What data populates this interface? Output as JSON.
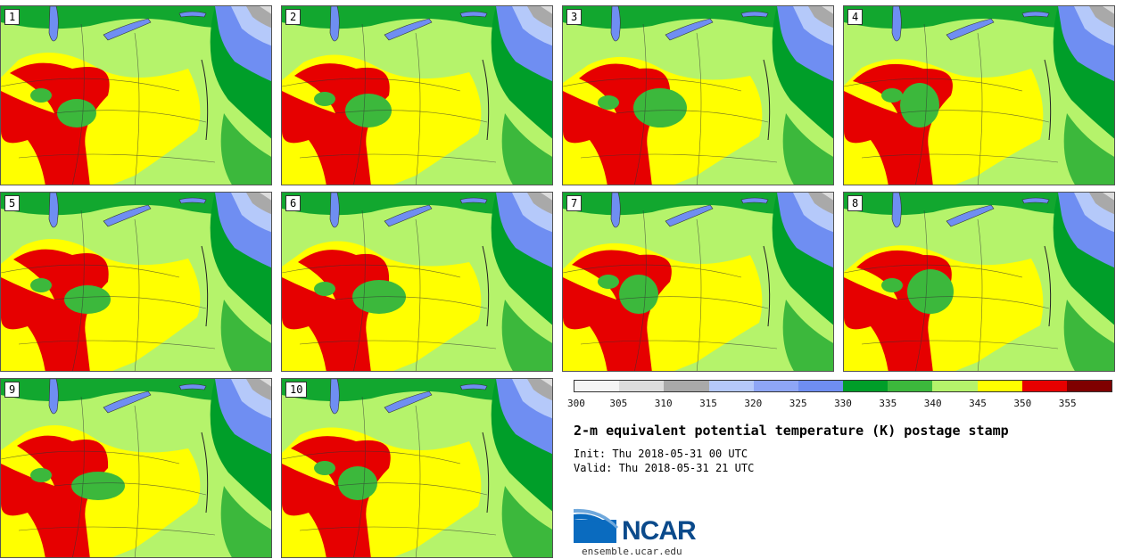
{
  "title": "2-m equivalent potential temperature (K) postage stamp",
  "init_label": "Init: Thu 2018-05-31 00 UTC",
  "valid_label": "Valid: Thu 2018-05-31 21 UTC",
  "colorbar": {
    "colors": [
      "#f4f4f4",
      "#dcdcdc",
      "#a9a9a9",
      "#b5c9fa",
      "#8ea6f6",
      "#6f8ef2",
      "#009e29",
      "#3cb83c",
      "#b5f36b",
      "#ffff00",
      "#e60000",
      "#7f0000"
    ],
    "ticks": [
      "300",
      "305",
      "310",
      "315",
      "320",
      "325",
      "330",
      "335",
      "340",
      "345",
      "350",
      "355"
    ]
  },
  "panels": [
    {
      "label": "1"
    },
    {
      "label": "2"
    },
    {
      "label": "3"
    },
    {
      "label": "4"
    },
    {
      "label": "5"
    },
    {
      "label": "6"
    },
    {
      "label": "7"
    },
    {
      "label": "8"
    },
    {
      "label": "9"
    },
    {
      "label": "10"
    }
  ],
  "logo": {
    "name": "NCAR",
    "site": "ensemble.ucar.edu"
  }
}
